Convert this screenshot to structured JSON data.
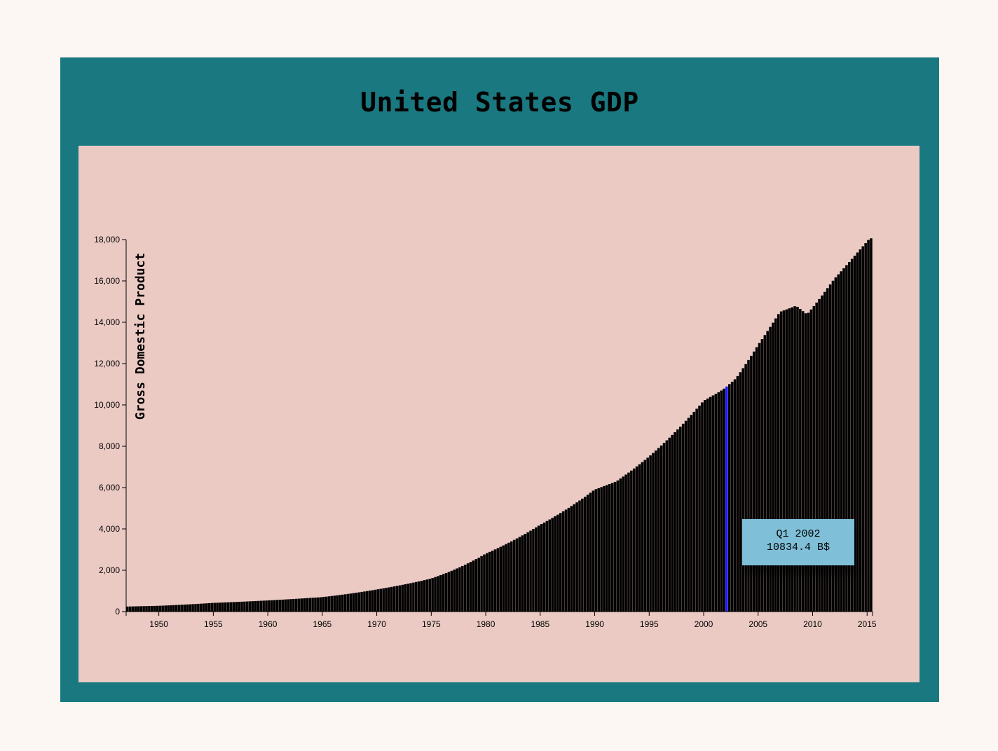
{
  "title": "United States GDP",
  "colors": {
    "page_background": "#fcf7f2",
    "frame": "#1a7880",
    "plot_background": "#ebcac4",
    "bar": "#000000",
    "highlight_bar": "#1a1aff",
    "tooltip_background": "#7fbfd8"
  },
  "tooltip": {
    "line1": "Q1 2002",
    "line2": "10834.4 B$"
  },
  "chart_data": {
    "type": "bar",
    "title": "United States GDP",
    "xlabel": "",
    "ylabel": "Gross Domestic Product",
    "x_ticks": [
      "1950",
      "1955",
      "1960",
      "1965",
      "1970",
      "1975",
      "1980",
      "1985",
      "1990",
      "1995",
      "2000",
      "2005",
      "2010",
      "2015"
    ],
    "y_ticks": [
      "0",
      "2,000",
      "4,000",
      "6,000",
      "8,000",
      "10,000",
      "12,000",
      "14,000",
      "16,000",
      "18,000"
    ],
    "ylim": [
      0,
      18000
    ],
    "xlim": [
      1947.0,
      2015.5
    ],
    "quarterly": true,
    "highlight": {
      "x": 2002.0,
      "value": 10834.4
    },
    "series": [
      {
        "anchors_x": [
          1947,
          1950,
          1955,
          1960,
          1965,
          1970,
          1975,
          1980,
          1982,
          1985,
          1990,
          1992,
          1995,
          2000,
          2001.5,
          2002,
          2003,
          2005,
          2007,
          2008.5,
          2009.5,
          2010,
          2012,
          2014,
          2015.25
        ],
        "anchors_y": [
          244,
          280,
          420,
          540,
          700,
          1070,
          1600,
          2800,
          3300,
          4200,
          5900,
          6300,
          7500,
          10200,
          10650,
          10834.4,
          11300,
          12900,
          14500,
          14800,
          14380,
          14700,
          16100,
          17300,
          18060
        ]
      }
    ]
  }
}
